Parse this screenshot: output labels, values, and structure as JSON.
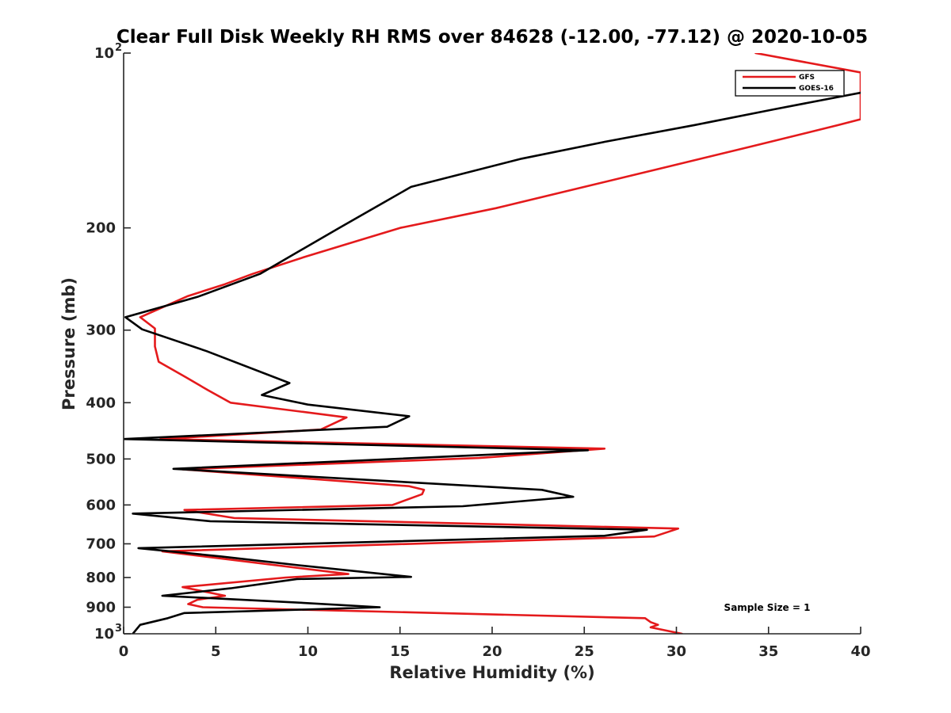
{
  "chart_data": {
    "type": "line",
    "title": "Clear Full Disk Weekly RH RMS over 84628 (-12.00, -77.12) @ 2020-10-05",
    "xlabel": "Relative Humidity (%)",
    "ylabel": "Pressure (mb)",
    "xlim": [
      0,
      40
    ],
    "ylim": [
      100,
      1000
    ],
    "yscale": "log",
    "yreversed": true,
    "x_ticks": [
      "0",
      "5",
      "10",
      "15",
      "20",
      "25",
      "30",
      "35",
      "40"
    ],
    "y_ticks": [
      {
        "value": 100,
        "label": "10",
        "sup": "2"
      },
      {
        "value": 200,
        "label": "200",
        "sup": ""
      },
      {
        "value": 300,
        "label": "300",
        "sup": ""
      },
      {
        "value": 400,
        "label": "400",
        "sup": ""
      },
      {
        "value": 500,
        "label": "500",
        "sup": ""
      },
      {
        "value": 600,
        "label": "600",
        "sup": ""
      },
      {
        "value": 700,
        "label": "700",
        "sup": ""
      },
      {
        "value": 800,
        "label": "800",
        "sup": ""
      },
      {
        "value": 900,
        "label": "900",
        "sup": ""
      },
      {
        "value": 1000,
        "label": "10",
        "sup": "3"
      }
    ],
    "legend_position": "top-right",
    "annotation": "Sample Size = 1",
    "series": [
      {
        "name": "GFS",
        "color": "#e41a1c",
        "points": [
          [
            34.3,
            100
          ],
          [
            40,
            108
          ],
          [
            40,
            130
          ],
          [
            38.8,
            133
          ],
          [
            34,
            145
          ],
          [
            29.5,
            157
          ],
          [
            25,
            170
          ],
          [
            20.2,
            185
          ],
          [
            15.0,
            200
          ],
          [
            12.8,
            210
          ],
          [
            9.9,
            224
          ],
          [
            7.0,
            240
          ],
          [
            5.5,
            250
          ],
          [
            3.5,
            262
          ],
          [
            0.9,
            285
          ],
          [
            1.7,
            298
          ],
          [
            1.7,
            320
          ],
          [
            1.9,
            340
          ],
          [
            3.4,
            362
          ],
          [
            4.6,
            381
          ],
          [
            5.8,
            400
          ],
          [
            12.1,
            424
          ],
          [
            10.7,
            445
          ],
          [
            2.0,
            462
          ],
          [
            26.1,
            480
          ],
          [
            19.3,
            498
          ],
          [
            3.2,
            521
          ],
          [
            15.5,
            557
          ],
          [
            16.3,
            565
          ],
          [
            16.2,
            575
          ],
          [
            14.6,
            600
          ],
          [
            3.3,
            612
          ],
          [
            6.0,
            632
          ],
          [
            30.1,
            659
          ],
          [
            28.8,
            680
          ],
          [
            2.1,
            721
          ],
          [
            12.2,
            789
          ],
          [
            8.8,
            800
          ],
          [
            3.2,
            831
          ],
          [
            5.5,
            860
          ],
          [
            4.0,
            874
          ],
          [
            3.5,
            889
          ],
          [
            4.3,
            900
          ],
          [
            28.3,
            940
          ],
          [
            28.6,
            955
          ],
          [
            29.0,
            965
          ],
          [
            28.6,
            975
          ],
          [
            30.3,
            1000
          ]
        ]
      },
      {
        "name": "GOES-16",
        "color": "#000000",
        "points": [
          [
            40,
            117
          ],
          [
            35.3,
            125
          ],
          [
            31,
            133
          ],
          [
            26.2,
            142
          ],
          [
            21.6,
            152
          ],
          [
            15.6,
            170
          ],
          [
            11.7,
            200
          ],
          [
            7.4,
            240
          ],
          [
            4,
            263
          ],
          [
            0.1,
            285
          ],
          [
            1.0,
            299
          ],
          [
            4.5,
            326
          ],
          [
            9.0,
            370
          ],
          [
            7.5,
            388
          ],
          [
            10.0,
            403
          ],
          [
            15.5,
            422
          ],
          [
            14.3,
            440
          ],
          [
            0,
            462
          ],
          [
            25.2,
            483
          ],
          [
            2.7,
            520
          ],
          [
            22.7,
            565
          ],
          [
            24.4,
            581
          ],
          [
            18.4,
            603
          ],
          [
            0.5,
            621
          ],
          [
            4.7,
            640
          ],
          [
            28.4,
            662
          ],
          [
            26.1,
            678
          ],
          [
            0.8,
            712
          ],
          [
            5.3,
            736
          ],
          [
            9.5,
            762
          ],
          [
            15.6,
            798
          ],
          [
            9.4,
            805
          ],
          [
            5.8,
            835
          ],
          [
            2.1,
            860
          ],
          [
            9.3,
            883
          ],
          [
            13.9,
            900
          ],
          [
            9.0,
            910
          ],
          [
            3.3,
            921
          ],
          [
            2.4,
            940
          ],
          [
            0.9,
            965
          ],
          [
            0.5,
            1000
          ]
        ]
      }
    ]
  }
}
